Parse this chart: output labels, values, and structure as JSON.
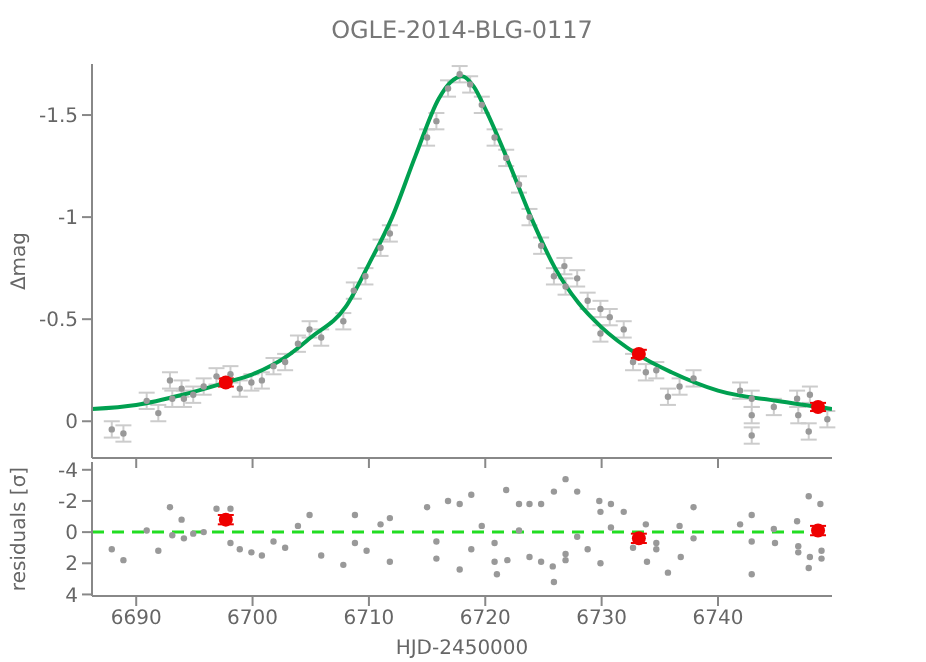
{
  "chart_data": [
    {
      "type": "scatter",
      "title": "OGLE-2014-BLG-0117",
      "ylabel": "Δmag",
      "xlim": [
        6686.2,
        6749.8
      ],
      "xticks": [
        6690,
        6700,
        6710,
        6720,
        6730,
        6740
      ],
      "ylim": [
        0.18,
        -1.75
      ],
      "yticks": [
        -1.5,
        -1.0,
        -0.5,
        0.0
      ],
      "tick_labels": "y",
      "grid": false,
      "legend": false,
      "series": [
        {
          "type": "scatter",
          "marker": "circle",
          "color": "#999999",
          "x": [
            6687.9,
            6688.9,
            6690.9,
            6691.9,
            6692.9,
            6693.1,
            6693.9,
            6694.1,
            6694.9,
            6695.8,
            6696.9,
            6698.1,
            6698.9,
            6699.9,
            6700.8,
            6701.8,
            6702.8,
            6703.9,
            6704.9,
            6705.9,
            6707.8,
            6708.7,
            6709.7,
            6711.0,
            6711.8,
            6715.0,
            6715.8,
            6716.8,
            6717.8,
            6718.7,
            6719.7,
            6720.8,
            6721.8,
            6722.9,
            6723.8,
            6724.8,
            6725.9,
            6726.8,
            6726.9,
            6727.9,
            6728.8,
            6729.9,
            6729.9,
            6730.7,
            6731.9,
            6732.7,
            6733.8,
            6734.7,
            6735.7,
            6736.7,
            6737.9,
            6741.9,
            6742.9,
            6742.9,
            6742.9,
            6744.8,
            6746.8,
            6746.9,
            6747.8,
            6747.9,
            6748.8,
            6749.4
          ],
          "values": [
            0.04,
            0.06,
            -0.1,
            -0.04,
            -0.2,
            -0.11,
            -0.16,
            -0.11,
            -0.13,
            -0.17,
            -0.22,
            -0.23,
            -0.16,
            -0.19,
            -0.2,
            -0.27,
            -0.29,
            -0.38,
            -0.45,
            -0.41,
            -0.49,
            -0.64,
            -0.71,
            -0.85,
            -0.92,
            -1.39,
            -1.47,
            -1.63,
            -1.7,
            -1.65,
            -1.55,
            -1.39,
            -1.29,
            -1.16,
            -1.0,
            -0.86,
            -0.71,
            -0.76,
            -0.66,
            -0.7,
            -0.59,
            -0.55,
            -0.43,
            -0.51,
            -0.45,
            -0.29,
            -0.24,
            -0.25,
            -0.12,
            -0.17,
            -0.21,
            -0.15,
            -0.11,
            -0.03,
            0.07,
            -0.07,
            -0.11,
            -0.03,
            0.05,
            -0.13,
            null,
            -0.01
          ],
          "errors": [
            0.04,
            0.04,
            0.04,
            0.04,
            0.04,
            0.04,
            0.04,
            0.04,
            0.04,
            0.04,
            0.04,
            0.04,
            0.04,
            0.04,
            0.04,
            0.04,
            0.04,
            0.04,
            0.04,
            0.04,
            0.04,
            0.04,
            0.04,
            0.04,
            0.04,
            0.04,
            0.04,
            0.04,
            0.04,
            0.04,
            0.04,
            0.04,
            0.04,
            0.04,
            0.04,
            0.04,
            0.04,
            0.04,
            0.04,
            0.04,
            0.04,
            0.04,
            0.04,
            0.04,
            0.04,
            0.04,
            0.04,
            0.04,
            0.04,
            0.04,
            0.04,
            0.04,
            0.04,
            0.04,
            0.04,
            0.04,
            0.04,
            0.04,
            0.04,
            0.04,
            null,
            0.04
          ]
        },
        {
          "type": "scatter",
          "marker": "circle",
          "color": "#ee0000",
          "x": [
            6697.7,
            6733.2,
            6748.6
          ],
          "values": [
            -0.19,
            -0.33,
            -0.07
          ],
          "errors": [
            0.02,
            0.02,
            0.02
          ]
        },
        {
          "type": "line",
          "marker": "none",
          "line_style": "solid",
          "color": "#00a050",
          "x": [
            6686.2,
            6690,
            6694,
            6697.7,
            6700,
            6703,
            6705,
            6708,
            6710,
            6712,
            6714,
            6716,
            6717,
            6718,
            6719,
            6720,
            6722,
            6724,
            6726,
            6728,
            6730,
            6733,
            6736,
            6740,
            6745,
            6749.8
          ],
          "values": [
            -0.06,
            -0.08,
            -0.13,
            -0.19,
            -0.23,
            -0.32,
            -0.41,
            -0.56,
            -0.77,
            -1.0,
            -1.3,
            -1.58,
            -1.66,
            -1.69,
            -1.64,
            -1.53,
            -1.27,
            -0.99,
            -0.75,
            -0.58,
            -0.46,
            -0.33,
            -0.24,
            -0.15,
            -0.1,
            -0.06
          ]
        }
      ]
    },
    {
      "type": "scatter",
      "xlabel": "HJD-2450000",
      "ylabel": "residuals [σ]",
      "xlim": [
        6686.2,
        6749.8
      ],
      "xticks": [
        6690,
        6700,
        6710,
        6720,
        6730,
        6740
      ],
      "ylim": [
        4.1,
        -4.5
      ],
      "yticks": [
        -4,
        -2,
        0,
        2,
        4
      ],
      "grid": false,
      "legend": false,
      "ref_lines": [
        {
          "axis": "y",
          "value": 0,
          "color": "#22dd22",
          "line_style": "dashed"
        }
      ],
      "series": [
        {
          "type": "scatter",
          "marker": "circle",
          "color": "#999999",
          "x": [
            6687.9,
            6688.9,
            6690.9,
            6691.9,
            6692.9,
            6693.1,
            6693.9,
            6694.1,
            6694.9,
            6695.8,
            6696.9,
            6698.1,
            6698.1,
            6698.9,
            6699.9,
            6700.8,
            6701.8,
            6702.8,
            6703.9,
            6704.9,
            6705.9,
            6707.8,
            6708.8,
            6708.8,
            6709.8,
            6711.0,
            6711.8,
            6711.8,
            6715.0,
            6715.8,
            6715.8,
            6716.8,
            6717.8,
            6717.8,
            6718.8,
            6718.8,
            6719.7,
            6720.8,
            6720.8,
            6721.0,
            6721.8,
            6721.9,
            6722.9,
            6722.9,
            6723.8,
            6723.8,
            6724.8,
            6724.8,
            6725.9,
            6725.8,
            6725.9,
            6726.9,
            6726.9,
            6726.9,
            6727.9,
            6727.9,
            6728.8,
            6729.8,
            6729.9,
            6729.9,
            6730.8,
            6730.8,
            6731.9,
            6732.7,
            6733.8,
            6733.9,
            6734.7,
            6734.7,
            6735.7,
            6736.7,
            6736.8,
            6737.9,
            6737.9,
            6741.9,
            6742.9,
            6742.9,
            6742.9,
            6744.8,
            6744.9,
            6746.8,
            6746.9,
            6746.9,
            6747.8,
            6747.8,
            6747.9,
            6748.8,
            6748.9,
            6748.9
          ],
          "values": [
            1.1,
            1.8,
            -0.1,
            1.2,
            -1.6,
            0.2,
            -0.8,
            0.4,
            0.1,
            0,
            -1.5,
            -1.5,
            0.7,
            1.1,
            1.3,
            1.5,
            0.6,
            1.0,
            -0.4,
            -1.1,
            1.5,
            2.1,
            -1.1,
            0.7,
            1.2,
            -0.5,
            -0.9,
            1.9,
            -1.6,
            0.6,
            1.7,
            -2.0,
            -1.8,
            2.4,
            -2.4,
            1.1,
            -0.4,
            0.7,
            1.9,
            2.7,
            -2.7,
            1.8,
            -1.8,
            -0.1,
            -1.8,
            1.6,
            -1.8,
            1.9,
            -2.6,
            2.2,
            3.2,
            -3.4,
            1.4,
            1.8,
            -2.6,
            0.3,
            1.1,
            -2.0,
            -1.3,
            2.0,
            -1.8,
            -0.3,
            -1.3,
            1.0,
            -0.5,
            1.9,
            0.7,
            1.1,
            2.6,
            -0.4,
            1.6,
            -1.6,
            0.4,
            -0.5,
            -1.1,
            0.6,
            2.7,
            -0.2,
            0.7,
            -0.7,
            0.9,
            1.3,
            -2.3,
            2.3,
            1.6,
            -1.8,
            1.2,
            1.7
          ]
        },
        {
          "type": "scatter",
          "marker": "circle",
          "color": "#ee0000",
          "x": [
            6697.7,
            6733.2,
            6748.6
          ],
          "values": [
            -0.8,
            0.4,
            -0.1
          ],
          "errors": [
            0.3,
            0.3,
            0.3
          ]
        }
      ]
    }
  ]
}
